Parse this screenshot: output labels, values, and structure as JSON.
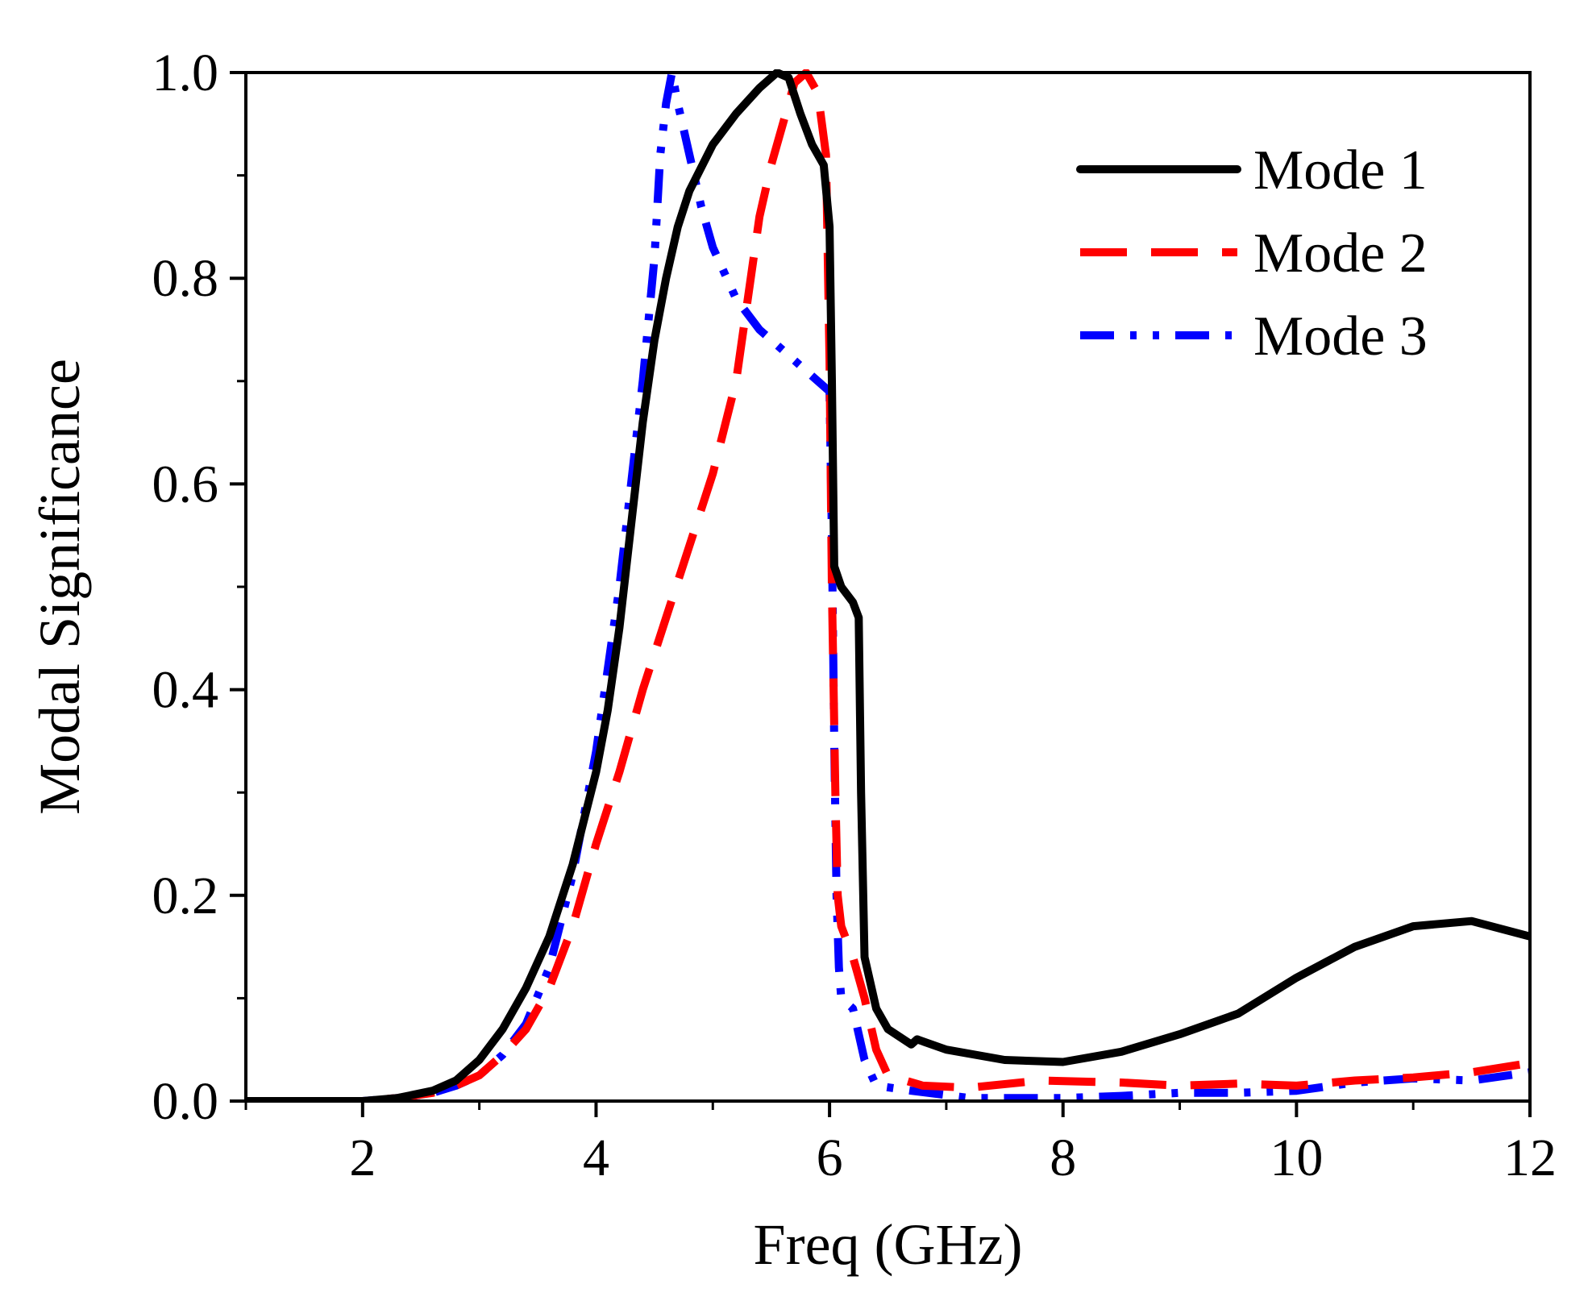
{
  "chart_data": {
    "type": "line",
    "title": "",
    "xlabel": "Freq (GHz)",
    "ylabel": "Modal Significance",
    "xlim": [
      1,
      12
    ],
    "ylim": [
      0.0,
      1.0
    ],
    "x_ticks": [
      2,
      4,
      6,
      8,
      10,
      12
    ],
    "x_tick_labels": [
      "2",
      "4",
      "6",
      "8",
      "10",
      "12"
    ],
    "y_ticks": [
      0.0,
      0.2,
      0.4,
      0.6,
      0.8,
      1.0
    ],
    "y_tick_labels": [
      "0.0",
      "0.2",
      "0.4",
      "0.6",
      "0.8",
      "1.0"
    ],
    "grid": false,
    "legend_position": "top-right",
    "series": [
      {
        "name": "Mode 1",
        "color": "#000000",
        "style": "solid",
        "points": [
          [
            1.0,
            0.0
          ],
          [
            1.5,
            0.0
          ],
          [
            2.0,
            0.0
          ],
          [
            2.3,
            0.003
          ],
          [
            2.6,
            0.01
          ],
          [
            2.8,
            0.02
          ],
          [
            3.0,
            0.04
          ],
          [
            3.2,
            0.07
          ],
          [
            3.4,
            0.11
          ],
          [
            3.6,
            0.16
          ],
          [
            3.8,
            0.23
          ],
          [
            4.0,
            0.32
          ],
          [
            4.1,
            0.38
          ],
          [
            4.2,
            0.46
          ],
          [
            4.3,
            0.56
          ],
          [
            4.4,
            0.66
          ],
          [
            4.5,
            0.74
          ],
          [
            4.6,
            0.8
          ],
          [
            4.7,
            0.85
          ],
          [
            4.8,
            0.885
          ],
          [
            5.0,
            0.93
          ],
          [
            5.2,
            0.96
          ],
          [
            5.4,
            0.985
          ],
          [
            5.55,
            1.0
          ],
          [
            5.65,
            0.995
          ],
          [
            5.75,
            0.96
          ],
          [
            5.85,
            0.93
          ],
          [
            5.95,
            0.91
          ],
          [
            6.0,
            0.85
          ],
          [
            6.02,
            0.7
          ],
          [
            6.04,
            0.52
          ],
          [
            6.1,
            0.5
          ],
          [
            6.2,
            0.485
          ],
          [
            6.25,
            0.47
          ],
          [
            6.27,
            0.3
          ],
          [
            6.3,
            0.14
          ],
          [
            6.4,
            0.09
          ],
          [
            6.5,
            0.07
          ],
          [
            6.7,
            0.055
          ],
          [
            6.75,
            0.06
          ],
          [
            7.0,
            0.05
          ],
          [
            7.5,
            0.04
          ],
          [
            8.0,
            0.038
          ],
          [
            8.5,
            0.048
          ],
          [
            9.0,
            0.065
          ],
          [
            9.5,
            0.085
          ],
          [
            10.0,
            0.12
          ],
          [
            10.5,
            0.15
          ],
          [
            11.0,
            0.17
          ],
          [
            11.5,
            0.175
          ],
          [
            12.0,
            0.16
          ]
        ]
      },
      {
        "name": "Mode 2",
        "color": "#ff0000",
        "style": "dashed",
        "points": [
          [
            1.0,
            0.0
          ],
          [
            1.5,
            0.0
          ],
          [
            2.0,
            0.0
          ],
          [
            2.3,
            0.003
          ],
          [
            2.6,
            0.008
          ],
          [
            2.8,
            0.015
          ],
          [
            3.0,
            0.025
          ],
          [
            3.2,
            0.045
          ],
          [
            3.4,
            0.07
          ],
          [
            3.6,
            0.11
          ],
          [
            3.8,
            0.17
          ],
          [
            4.0,
            0.25
          ],
          [
            4.2,
            0.32
          ],
          [
            4.4,
            0.4
          ],
          [
            4.6,
            0.47
          ],
          [
            4.8,
            0.54
          ],
          [
            5.0,
            0.61
          ],
          [
            5.2,
            0.7
          ],
          [
            5.3,
            0.78
          ],
          [
            5.4,
            0.86
          ],
          [
            5.5,
            0.91
          ],
          [
            5.6,
            0.95
          ],
          [
            5.7,
            0.99
          ],
          [
            5.8,
            1.0
          ],
          [
            5.9,
            0.98
          ],
          [
            5.97,
            0.92
          ],
          [
            6.0,
            0.72
          ],
          [
            6.02,
            0.5
          ],
          [
            6.05,
            0.3
          ],
          [
            6.07,
            0.2
          ],
          [
            6.1,
            0.17
          ],
          [
            6.2,
            0.14
          ],
          [
            6.3,
            0.1
          ],
          [
            6.4,
            0.05
          ],
          [
            6.5,
            0.025
          ],
          [
            6.8,
            0.015
          ],
          [
            7.2,
            0.013
          ],
          [
            7.8,
            0.02
          ],
          [
            8.5,
            0.018
          ],
          [
            9.0,
            0.015
          ],
          [
            9.5,
            0.017
          ],
          [
            10.0,
            0.015
          ],
          [
            10.5,
            0.02
          ],
          [
            11.0,
            0.023
          ],
          [
            11.5,
            0.028
          ],
          [
            12.0,
            0.037
          ]
        ]
      },
      {
        "name": "Mode 3",
        "color": "#0000ff",
        "style": "dashdotdot",
        "points": [
          [
            1.0,
            0.0
          ],
          [
            1.5,
            0.0
          ],
          [
            2.0,
            0.0
          ],
          [
            2.3,
            0.003
          ],
          [
            2.6,
            0.008
          ],
          [
            2.8,
            0.015
          ],
          [
            3.0,
            0.025
          ],
          [
            3.2,
            0.045
          ],
          [
            3.4,
            0.075
          ],
          [
            3.6,
            0.13
          ],
          [
            3.8,
            0.22
          ],
          [
            4.0,
            0.34
          ],
          [
            4.2,
            0.5
          ],
          [
            4.4,
            0.7
          ],
          [
            4.5,
            0.82
          ],
          [
            4.55,
            0.92
          ],
          [
            4.6,
            0.97
          ],
          [
            4.65,
            1.0
          ],
          [
            4.7,
            0.97
          ],
          [
            4.8,
            0.92
          ],
          [
            4.9,
            0.87
          ],
          [
            5.0,
            0.83
          ],
          [
            5.2,
            0.78
          ],
          [
            5.4,
            0.75
          ],
          [
            5.6,
            0.73
          ],
          [
            5.8,
            0.71
          ],
          [
            6.0,
            0.69
          ],
          [
            6.02,
            0.55
          ],
          [
            6.04,
            0.35
          ],
          [
            6.06,
            0.2
          ],
          [
            6.08,
            0.13
          ],
          [
            6.1,
            0.1
          ],
          [
            6.2,
            0.09
          ],
          [
            6.3,
            0.04
          ],
          [
            6.4,
            0.015
          ],
          [
            6.7,
            0.01
          ],
          [
            7.2,
            0.003
          ],
          [
            7.6,
            0.003
          ],
          [
            8.0,
            0.003
          ],
          [
            8.5,
            0.005
          ],
          [
            9.0,
            0.008
          ],
          [
            9.5,
            0.008
          ],
          [
            10.0,
            0.01
          ],
          [
            10.5,
            0.018
          ],
          [
            11.0,
            0.022
          ],
          [
            11.5,
            0.02
          ],
          [
            12.0,
            0.028
          ]
        ]
      }
    ]
  }
}
